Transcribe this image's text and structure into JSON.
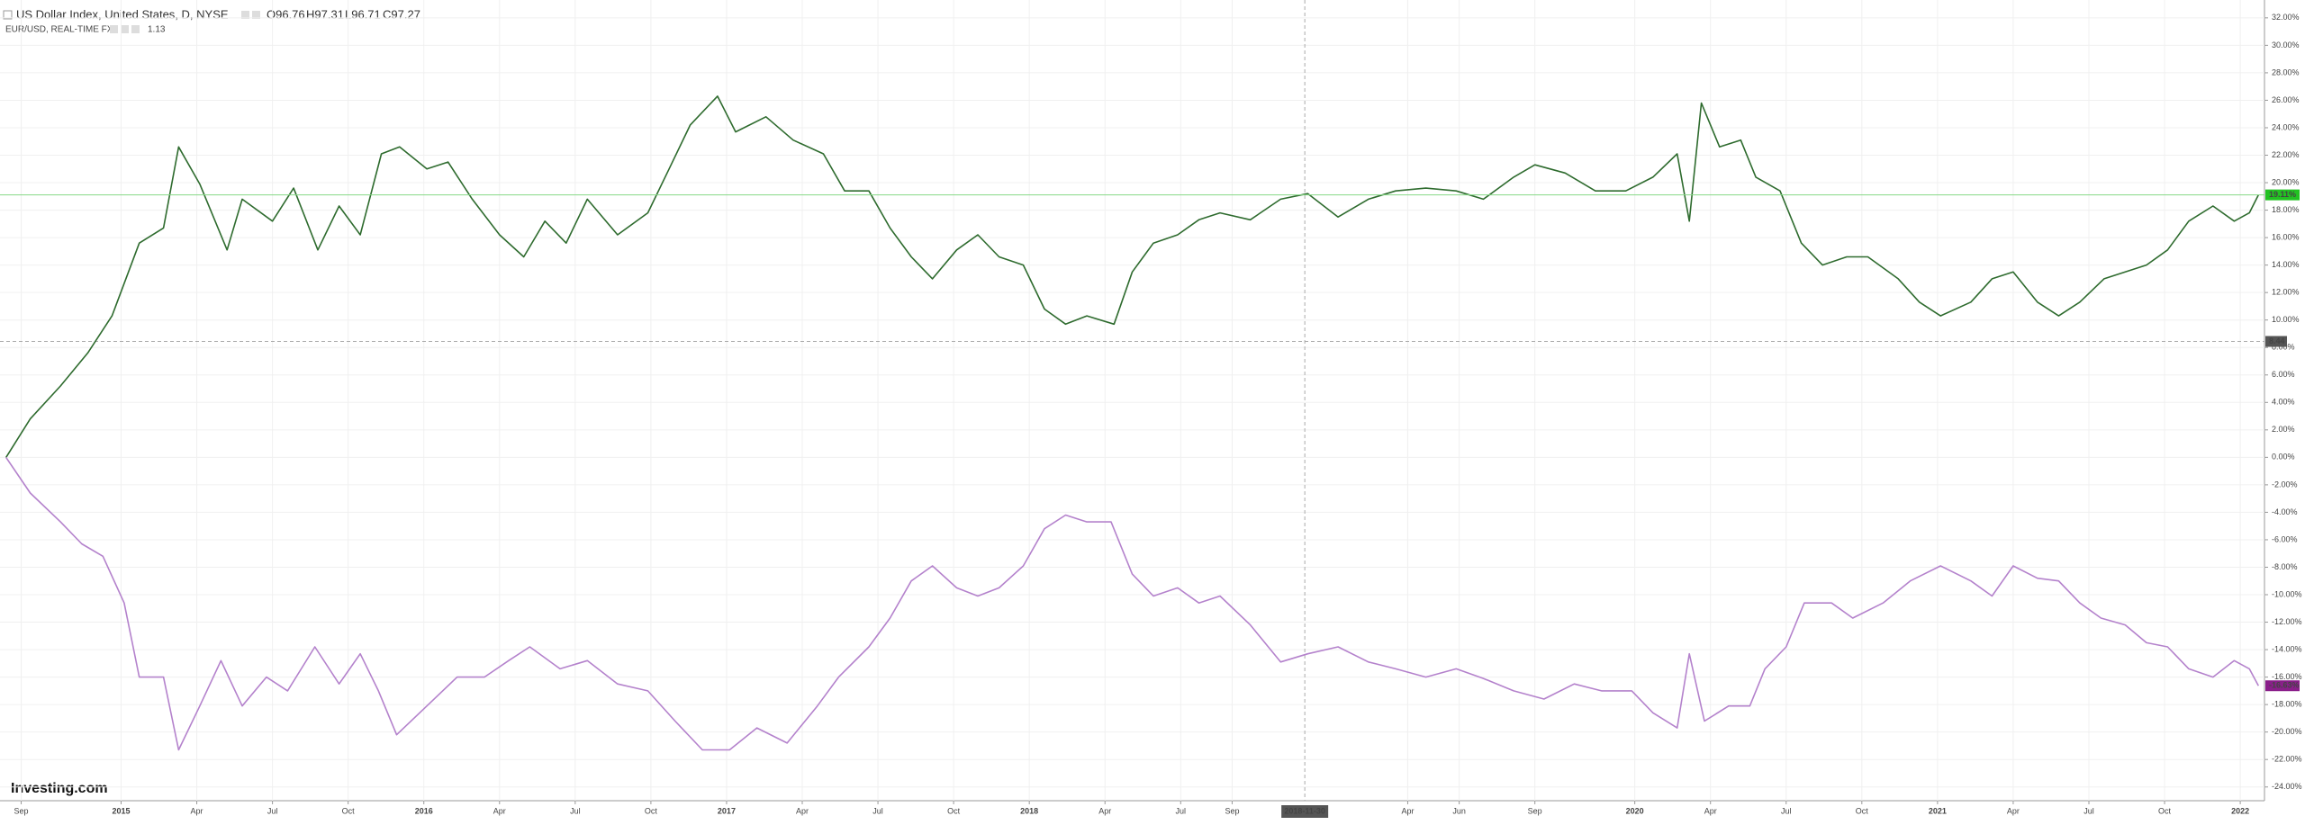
{
  "chart_data": {
    "type": "line",
    "ohlc": [
      "O96.76",
      "H97.31",
      "L96.71",
      "C97.27"
    ],
    "compare_price": "1.13",
    "watermark": "Investing.com",
    "xlim": [
      2014.6,
      2022.08
    ],
    "ylim": [
      -25,
      33.3
    ],
    "grid": true,
    "xticks": [
      {
        "value": 2014.67,
        "label": "Sep"
      },
      2015,
      {
        "value": 2015.25,
        "label": "Apr"
      },
      {
        "value": 2015.5,
        "label": "Jul"
      },
      {
        "value": 2015.75,
        "label": "Oct"
      },
      2016,
      {
        "value": 2016.25,
        "label": "Apr"
      },
      {
        "value": 2016.5,
        "label": "Jul"
      },
      {
        "value": 2016.75,
        "label": "Oct"
      },
      2017,
      {
        "value": 2017.25,
        "label": "Apr"
      },
      {
        "value": 2017.5,
        "label": "Jul"
      },
      {
        "value": 2017.75,
        "label": "Oct"
      },
      2018,
      {
        "value": 2018.25,
        "label": "Apr"
      },
      {
        "value": 2018.5,
        "label": "Jul"
      },
      {
        "value": 2018.67,
        "label": "Sep"
      },
      {
        "value": 2019.25,
        "label": "Apr"
      },
      {
        "value": 2019.42,
        "label": "Jun"
      },
      {
        "value": 2019.67,
        "label": "Sep"
      },
      2020,
      {
        "value": 2020.25,
        "label": "Apr"
      },
      {
        "value": 2020.5,
        "label": "Jul"
      },
      {
        "value": 2020.75,
        "label": "Oct"
      },
      2021,
      {
        "value": 2021.25,
        "label": "Apr"
      },
      {
        "value": 2021.5,
        "label": "Jul"
      },
      {
        "value": 2021.75,
        "label": "Oct"
      },
      2022
    ],
    "yticks": [
      {
        "value": 32,
        "label": "32.00%"
      },
      {
        "value": 30,
        "label": "30.00%"
      },
      {
        "value": 28,
        "label": "28.00%"
      },
      {
        "value": 26,
        "label": "26.00%"
      },
      {
        "value": 24,
        "label": "24.00%"
      },
      {
        "value": 22,
        "label": "22.00%"
      },
      {
        "value": 20,
        "label": "20.00%"
      },
      {
        "value": 18,
        "label": "18.00%"
      },
      {
        "value": 16,
        "label": "16.00%"
      },
      {
        "value": 14,
        "label": "14.00%"
      },
      {
        "value": 12,
        "label": "12.00%"
      },
      {
        "value": 10,
        "label": "10.00%"
      },
      {
        "value": 8,
        "label": "8.00%"
      },
      {
        "value": 6,
        "label": "6.00%"
      },
      {
        "value": 4,
        "label": "4.00%"
      },
      {
        "value": 2,
        "label": "2.00%"
      },
      {
        "value": 0,
        "label": "0.00%"
      },
      {
        "value": -2,
        "label": "-2.00%"
      },
      {
        "value": -4,
        "label": "-4.00%"
      },
      {
        "value": -6,
        "label": "-6.00%"
      },
      {
        "value": -8,
        "label": "-8.00%"
      },
      {
        "value": -10,
        "label": "-10.00%"
      },
      {
        "value": -12,
        "label": "-12.00%"
      },
      {
        "value": -14,
        "label": "-14.00%"
      },
      {
        "value": -16,
        "label": "-16.00%"
      },
      {
        "value": -18,
        "label": "-18.00%"
      },
      {
        "value": -20,
        "label": "-20.00%"
      },
      {
        "value": -22,
        "label": "-22.00%"
      },
      {
        "value": -24,
        "label": "-24.00%"
      }
    ],
    "crosshair": {
      "x": {
        "value": 2018.91,
        "label": "2018-11-30"
      },
      "y": 8.44
    },
    "series": [
      {
        "name": "US Dollar Index, United States, D, NYSE",
        "color": "#2e6b2e",
        "last_label": "19.11%",
        "label_color": "#22c222",
        "x": [
          2014.62,
          2014.7,
          2014.8,
          2014.89,
          2014.97,
          2015.06,
          2015.14,
          2015.19,
          2015.26,
          2015.35,
          2015.4,
          2015.5,
          2015.57,
          2015.65,
          2015.72,
          2015.79,
          2015.86,
          2015.92,
          2016.01,
          2016.08,
          2016.16,
          2016.25,
          2016.33,
          2016.4,
          2016.47,
          2016.54,
          2016.64,
          2016.74,
          2016.81,
          2016.88,
          2016.97,
          2017.03,
          2017.13,
          2017.22,
          2017.32,
          2017.39,
          2017.47,
          2017.54,
          2017.61,
          2017.68,
          2017.76,
          2017.83,
          2017.9,
          2017.98,
          2018.05,
          2018.12,
          2018.19,
          2018.28,
          2018.34,
          2018.41,
          2018.49,
          2018.56,
          2018.63,
          2018.73,
          2018.83,
          2018.92,
          2019.02,
          2019.12,
          2019.21,
          2019.31,
          2019.41,
          2019.5,
          2019.6,
          2019.67,
          2019.77,
          2019.87,
          2019.97,
          2020.06,
          2020.14,
          2020.18,
          2020.22,
          2020.28,
          2020.35,
          2020.4,
          2020.48,
          2020.55,
          2020.62,
          2020.7,
          2020.77,
          2020.87,
          2020.94,
          2021.01,
          2021.11,
          2021.18,
          2021.25,
          2021.33,
          2021.4,
          2021.47,
          2021.55,
          2021.62,
          2021.69,
          2021.76,
          2021.83,
          2021.91,
          2021.98,
          2022.03,
          2022.06
        ],
        "values": [
          0,
          2.8,
          5.2,
          7.6,
          10.3,
          15.6,
          16.7,
          22.6,
          19.9,
          15.1,
          18.8,
          17.2,
          19.6,
          15.1,
          18.3,
          16.2,
          22.1,
          22.6,
          21.0,
          21.5,
          18.8,
          16.2,
          14.6,
          17.2,
          15.6,
          18.8,
          16.2,
          17.8,
          21.0,
          24.2,
          26.3,
          23.7,
          24.8,
          23.1,
          22.1,
          19.4,
          19.4,
          16.7,
          14.6,
          13.0,
          15.1,
          16.2,
          14.6,
          14.0,
          10.8,
          9.7,
          10.3,
          9.7,
          13.5,
          15.6,
          16.2,
          17.3,
          17.8,
          17.3,
          18.8,
          19.2,
          17.5,
          18.8,
          19.4,
          19.6,
          19.4,
          18.8,
          20.4,
          21.3,
          20.7,
          19.4,
          19.4,
          20.4,
          22.1,
          17.2,
          25.8,
          22.6,
          23.1,
          20.4,
          19.4,
          15.6,
          14.0,
          14.6,
          14.6,
          13.0,
          11.3,
          10.3,
          11.3,
          13.0,
          13.5,
          11.3,
          10.3,
          11.3,
          13.0,
          13.5,
          14.0,
          15.1,
          17.2,
          18.3,
          17.2,
          17.8,
          19.11
        ]
      },
      {
        "name": "EUR/USD, REAL-TIME FX",
        "color": "#b482cc",
        "last_label": "-16.63%",
        "label_color": "#8a1f8a",
        "x": [
          2014.62,
          2014.7,
          2014.8,
          2014.87,
          2014.94,
          2015.01,
          2015.06,
          2015.14,
          2015.19,
          2015.26,
          2015.33,
          2015.4,
          2015.48,
          2015.55,
          2015.64,
          2015.72,
          2015.79,
          2015.85,
          2015.91,
          2016.01,
          2016.11,
          2016.2,
          2016.28,
          2016.35,
          2016.45,
          2016.54,
          2016.64,
          2016.74,
          2016.83,
          2016.92,
          2017.01,
          2017.1,
          2017.2,
          2017.3,
          2017.37,
          2017.47,
          2017.54,
          2017.61,
          2017.68,
          2017.76,
          2017.83,
          2017.9,
          2017.98,
          2018.05,
          2018.12,
          2018.19,
          2018.27,
          2018.34,
          2018.41,
          2018.49,
          2018.56,
          2018.63,
          2018.73,
          2018.83,
          2018.92,
          2019.02,
          2019.12,
          2019.21,
          2019.31,
          2019.41,
          2019.5,
          2019.6,
          2019.7,
          2019.8,
          2019.89,
          2019.99,
          2020.06,
          2020.14,
          2020.18,
          2020.23,
          2020.31,
          2020.38,
          2020.43,
          2020.5,
          2020.56,
          2020.65,
          2020.72,
          2020.82,
          2020.91,
          2021.01,
          2021.11,
          2021.18,
          2021.25,
          2021.33,
          2021.4,
          2021.47,
          2021.54,
          2021.62,
          2021.69,
          2021.76,
          2021.83,
          2021.91,
          2021.98,
          2022.03,
          2022.06
        ],
        "values": [
          0,
          -2.6,
          -4.7,
          -6.3,
          -7.2,
          -10.6,
          -16.0,
          -16.0,
          -21.3,
          -18.1,
          -14.8,
          -18.1,
          -16.0,
          -17.0,
          -13.8,
          -16.5,
          -14.3,
          -17.0,
          -20.2,
          -18.1,
          -16.0,
          -16.0,
          -14.8,
          -13.8,
          -15.4,
          -14.8,
          -16.5,
          -17.0,
          -19.2,
          -21.3,
          -21.3,
          -19.7,
          -20.8,
          -18.1,
          -16.0,
          -13.8,
          -11.7,
          -9.0,
          -7.9,
          -9.5,
          -10.1,
          -9.5,
          -7.9,
          -5.2,
          -4.2,
          -4.7,
          -4.7,
          -8.5,
          -10.1,
          -9.5,
          -10.6,
          -10.1,
          -12.2,
          -14.9,
          -14.3,
          -13.8,
          -14.9,
          -15.4,
          -16.0,
          -15.4,
          -16.1,
          -17.0,
          -17.6,
          -16.5,
          -17.0,
          -17.0,
          -18.6,
          -19.7,
          -14.3,
          -19.2,
          -18.1,
          -18.1,
          -15.4,
          -13.8,
          -10.6,
          -10.6,
          -11.7,
          -10.6,
          -9.0,
          -7.9,
          -9.0,
          -10.1,
          -7.9,
          -8.8,
          -9.0,
          -10.6,
          -11.7,
          -12.2,
          -13.5,
          -13.8,
          -15.4,
          -16.0,
          -14.8,
          -15.4,
          -16.63
        ]
      }
    ]
  }
}
